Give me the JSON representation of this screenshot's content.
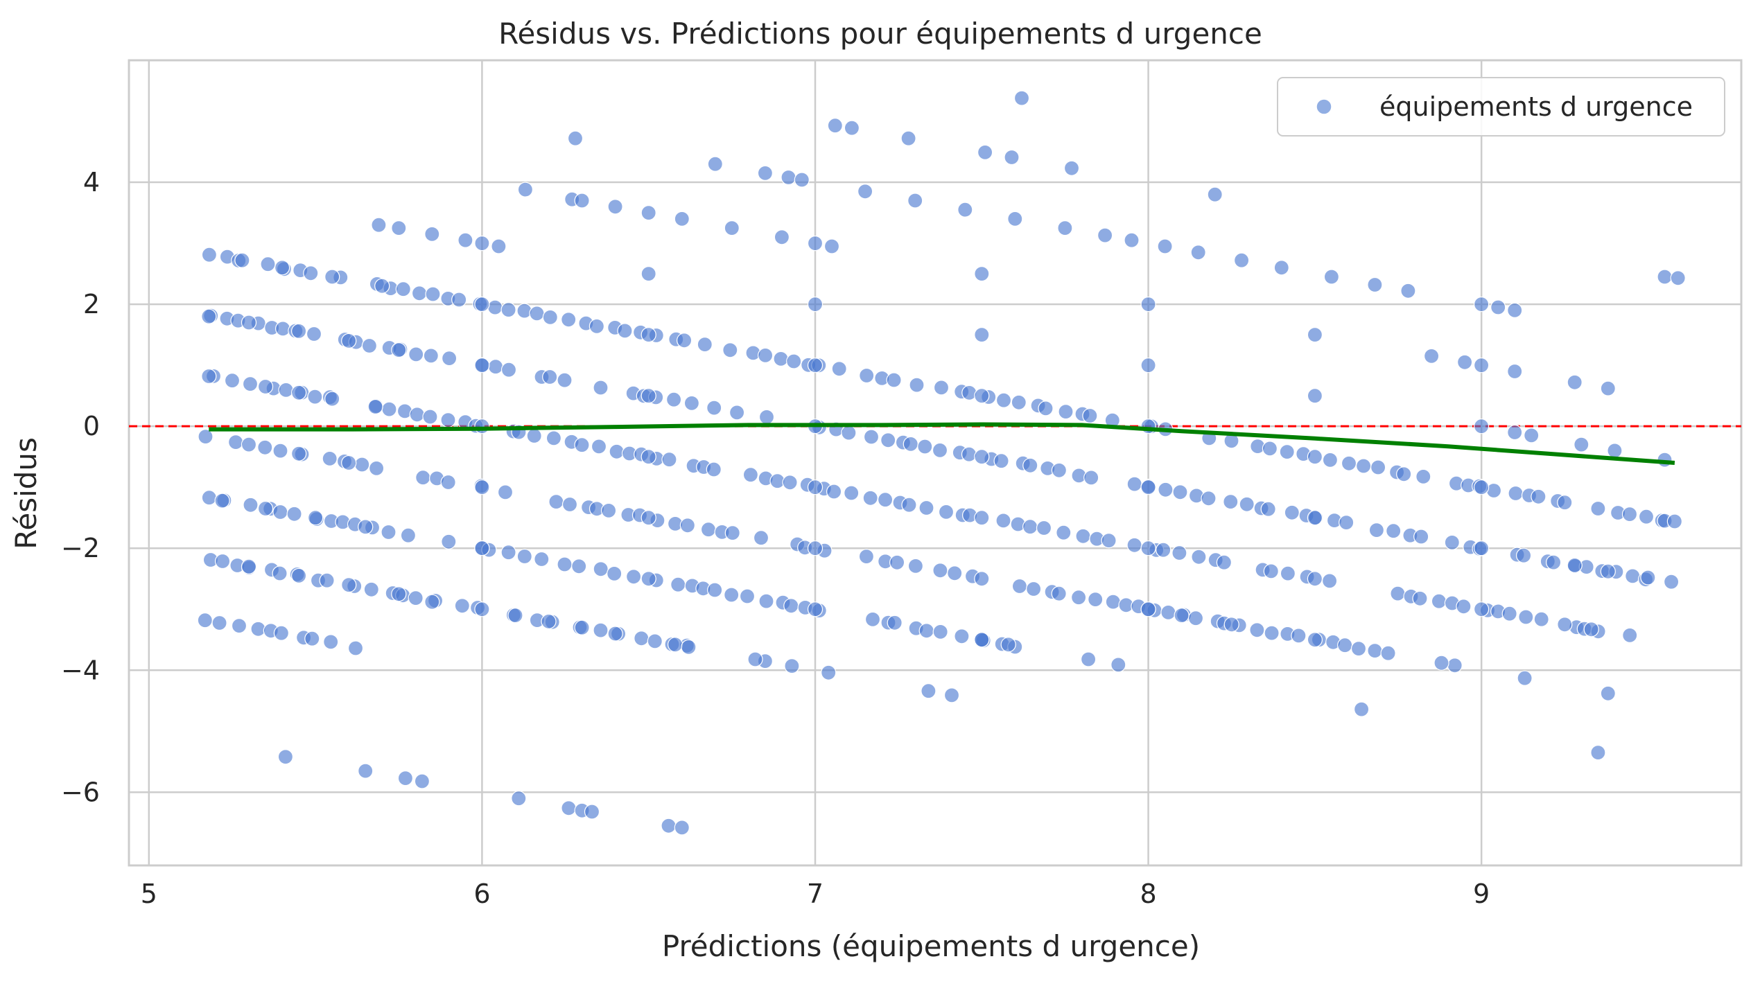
{
  "chart_data": {
    "type": "scatter",
    "title": "Résidus vs. Prédictions pour équipements d urgence",
    "xlabel": "Prédictions (équipements d urgence)",
    "ylabel": "Résidus",
    "xlim": [
      4.94,
      9.78
    ],
    "ylim": [
      -7.2,
      6.0
    ],
    "xticks": [
      5,
      6,
      7,
      8,
      9
    ],
    "xtick_labels": [
      "5",
      "6",
      "7",
      "8",
      "9"
    ],
    "yticks": [
      -6,
      -4,
      -2,
      0,
      2,
      4
    ],
    "ytick_labels": [
      "−6",
      "−4",
      "−2",
      "0",
      "2",
      "4"
    ],
    "grid": true,
    "legend": {
      "position": "top-right",
      "entries": [
        "équipements d urgence"
      ]
    },
    "reference_line": {
      "y": 0,
      "style": "dashed",
      "color": "#ff0000"
    },
    "colors": {
      "points": "#4878d0",
      "trend": "#008000",
      "grid": "#cccccc",
      "axes": "#cccccc"
    },
    "band_structure": {
      "description_free": true,
      "slope": -0.98,
      "offsets": [
        -3,
        -2,
        -1,
        0,
        1,
        2,
        3,
        4,
        5,
        6,
        7,
        8
      ],
      "x_min": 5.18,
      "x_max": 9.58
    },
    "series": [
      {
        "name": "équipements d urgence",
        "kind": "scatter",
        "points": [
          [
            5.18,
            0.82
          ],
          [
            5.25,
            0.75
          ],
          [
            5.35,
            0.65
          ],
          [
            5.45,
            0.55
          ],
          [
            5.55,
            0.45
          ],
          [
            5.68,
            0.32
          ],
          [
            5.18,
            1.8
          ],
          [
            5.3,
            1.7
          ],
          [
            5.45,
            1.56
          ],
          [
            5.6,
            1.4
          ],
          [
            5.75,
            1.25
          ],
          [
            5.28,
            2.72
          ],
          [
            5.4,
            2.6
          ],
          [
            5.55,
            2.45
          ],
          [
            5.7,
            2.3
          ],
          [
            5.17,
            -0.17
          ],
          [
            5.3,
            -0.3
          ],
          [
            5.45,
            -0.45
          ],
          [
            5.6,
            -0.6
          ],
          [
            5.22,
            -1.22
          ],
          [
            5.35,
            -1.35
          ],
          [
            5.5,
            -1.5
          ],
          [
            5.65,
            -1.65
          ],
          [
            5.3,
            -2.3
          ],
          [
            5.45,
            -2.45
          ],
          [
            5.6,
            -2.6
          ],
          [
            5.75,
            -2.75
          ],
          [
            5.85,
            -2.88
          ],
          [
            5.41,
            -5.42
          ],
          [
            5.65,
            -5.65
          ],
          [
            5.77,
            -5.77
          ],
          [
            5.82,
            -5.82
          ],
          [
            5.69,
            3.3
          ],
          [
            5.75,
            3.25
          ],
          [
            5.85,
            3.15
          ],
          [
            5.95,
            3.05
          ],
          [
            6.05,
            2.95
          ],
          [
            6.13,
            3.88
          ],
          [
            6.27,
            3.72
          ],
          [
            6.3,
            3.7
          ],
          [
            6.28,
            4.72
          ],
          [
            6.7,
            4.3
          ],
          [
            6.85,
            4.15
          ],
          [
            6.92,
            4.08
          ],
          [
            6.96,
            4.04
          ],
          [
            7.06,
            4.93
          ],
          [
            7.11,
            4.89
          ],
          [
            7.28,
            4.72
          ],
          [
            7.51,
            4.49
          ],
          [
            7.59,
            4.41
          ],
          [
            7.62,
            5.38
          ],
          [
            7.77,
            4.23
          ],
          [
            6.4,
            3.6
          ],
          [
            6.5,
            3.5
          ],
          [
            6.6,
            3.4
          ],
          [
            6.75,
            3.25
          ],
          [
            6.9,
            3.1
          ],
          [
            7.05,
            2.95
          ],
          [
            7.15,
            3.85
          ],
          [
            7.3,
            3.7
          ],
          [
            7.45,
            3.55
          ],
          [
            7.6,
            3.4
          ],
          [
            7.75,
            3.25
          ],
          [
            7.87,
            3.13
          ],
          [
            7.95,
            3.05
          ],
          [
            8.05,
            2.95
          ],
          [
            8.15,
            2.85
          ],
          [
            8.2,
            3.8
          ],
          [
            8.28,
            2.72
          ],
          [
            8.4,
            2.6
          ],
          [
            8.55,
            2.45
          ],
          [
            8.68,
            2.32
          ],
          [
            8.78,
            2.22
          ],
          [
            9.0,
            2.0
          ],
          [
            9.05,
            1.95
          ],
          [
            9.1,
            1.9
          ],
          [
            9.55,
            2.45
          ],
          [
            9.59,
            2.43
          ],
          [
            8.85,
            1.15
          ],
          [
            8.95,
            1.05
          ],
          [
            9.1,
            0.9
          ],
          [
            9.28,
            0.72
          ],
          [
            9.38,
            0.62
          ],
          [
            9.1,
            -0.1
          ],
          [
            9.15,
            -0.15
          ],
          [
            9.3,
            -0.3
          ],
          [
            9.4,
            -0.4
          ],
          [
            9.55,
            -0.55
          ],
          [
            9.25,
            -1.25
          ],
          [
            9.35,
            -1.35
          ],
          [
            9.55,
            -1.55
          ],
          [
            9.58,
            -1.56
          ],
          [
            9.28,
            -2.28
          ],
          [
            9.38,
            -2.38
          ],
          [
            9.5,
            -2.48
          ],
          [
            9.57,
            -2.55
          ],
          [
            9.25,
            -3.25
          ],
          [
            9.33,
            -3.33
          ],
          [
            9.13,
            -4.13
          ],
          [
            9.35,
            -5.35
          ],
          [
            9.38,
            -4.38
          ],
          [
            8.92,
            -3.92
          ],
          [
            8.88,
            -3.88
          ],
          [
            8.68,
            -3.68
          ],
          [
            8.72,
            -3.72
          ],
          [
            8.64,
            -4.64
          ],
          [
            8.5,
            -3.5
          ],
          [
            7.34,
            -4.34
          ],
          [
            7.41,
            -4.41
          ],
          [
            7.82,
            -3.82
          ],
          [
            7.91,
            -3.91
          ],
          [
            6.85,
            -3.85
          ],
          [
            6.93,
            -3.93
          ],
          [
            7.04,
            -4.04
          ],
          [
            6.82,
            -3.82
          ],
          [
            6.11,
            -6.1
          ],
          [
            6.26,
            -6.26
          ],
          [
            6.3,
            -6.3
          ],
          [
            6.33,
            -6.32
          ],
          [
            6.56,
            -6.55
          ],
          [
            6.6,
            -6.58
          ],
          [
            6.0,
            -3.0
          ],
          [
            6.1,
            -3.1
          ],
          [
            6.2,
            -3.2
          ],
          [
            6.3,
            -3.3
          ],
          [
            6.4,
            -3.4
          ],
          [
            6.58,
            -3.58
          ],
          [
            6.62,
            -3.62
          ],
          [
            7.5,
            -3.5
          ],
          [
            7.58,
            -3.58
          ],
          [
            8.0,
            -3.0
          ],
          [
            8.1,
            -3.1
          ],
          [
            8.25,
            -3.25
          ],
          [
            6.0,
            1.0
          ],
          [
            6.5,
            0.5
          ],
          [
            7.0,
            0.0
          ],
          [
            7.5,
            -0.5
          ],
          [
            8.0,
            -1.0
          ],
          [
            8.5,
            -1.5
          ],
          [
            9.0,
            -2.0
          ],
          [
            6.0,
            2.0
          ],
          [
            6.5,
            1.5
          ],
          [
            7.0,
            1.0
          ],
          [
            7.5,
            0.5
          ],
          [
            8.0,
            0.0
          ],
          [
            8.5,
            -0.5
          ],
          [
            9.0,
            -1.0
          ],
          [
            6.0,
            3.0
          ],
          [
            6.5,
            2.5
          ],
          [
            7.0,
            2.0
          ],
          [
            7.5,
            1.5
          ],
          [
            8.0,
            1.0
          ],
          [
            8.5,
            0.5
          ],
          [
            9.0,
            0.0
          ],
          [
            6.0,
            0.0
          ],
          [
            6.5,
            -0.5
          ],
          [
            7.0,
            -1.0
          ],
          [
            7.5,
            -1.5
          ],
          [
            8.0,
            -2.0
          ],
          [
            8.5,
            -2.5
          ],
          [
            9.0,
            -3.0
          ],
          [
            6.0,
            -1.0
          ],
          [
            6.5,
            -1.5
          ],
          [
            7.0,
            -2.0
          ],
          [
            7.5,
            -2.5
          ],
          [
            8.0,
            -3.0
          ],
          [
            6.0,
            -2.0
          ],
          [
            6.5,
            -2.5
          ],
          [
            7.0,
            -3.0
          ],
          [
            7.5,
            -3.5
          ],
          [
            7.0,
            3.0
          ],
          [
            7.5,
            2.5
          ],
          [
            8.0,
            2.0
          ],
          [
            8.5,
            1.5
          ],
          [
            9.0,
            1.0
          ]
        ]
      },
      {
        "name": "",
        "kind": "line",
        "x": [
          5.18,
          5.6,
          6.0,
          6.4,
          6.8,
          7.2,
          7.5,
          7.8,
          8.1,
          8.5,
          8.9,
          9.2,
          9.58
        ],
        "y": [
          -0.05,
          -0.05,
          -0.04,
          -0.01,
          0.02,
          0.02,
          0.03,
          0.02,
          -0.08,
          -0.2,
          -0.33,
          -0.45,
          -0.6
        ]
      }
    ]
  }
}
